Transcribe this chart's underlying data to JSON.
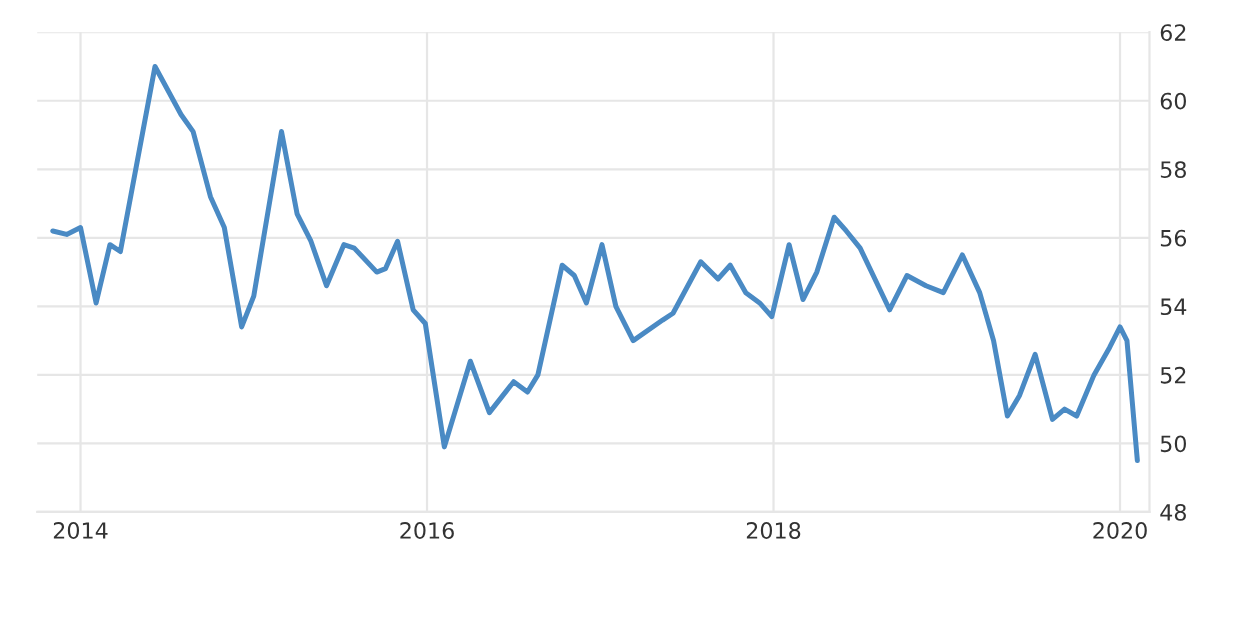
{
  "chart_data": {
    "type": "line",
    "x": [
      2013.84,
      2013.92,
      2014.0,
      2014.09,
      2014.17,
      2014.23,
      2014.43,
      2014.58,
      2014.65,
      2014.75,
      2014.83,
      2014.93,
      2015.0,
      2015.16,
      2015.25,
      2015.33,
      2015.42,
      2015.52,
      2015.58,
      2015.71,
      2015.76,
      2015.83,
      2015.92,
      2015.99,
      2016.1,
      2016.25,
      2016.36,
      2016.5,
      2016.58,
      2016.64,
      2016.78,
      2016.85,
      2016.92,
      2017.01,
      2017.09,
      2017.19,
      2017.36,
      2017.42,
      2017.58,
      2017.68,
      2017.75,
      2017.84,
      2017.92,
      2017.99,
      2018.09,
      2018.17,
      2018.25,
      2018.35,
      2018.42,
      2018.5,
      2018.67,
      2018.77,
      2018.88,
      2018.98,
      2019.09,
      2019.19,
      2019.27,
      2019.35,
      2019.42,
      2019.51,
      2019.61,
      2019.68,
      2019.75,
      2019.85,
      2019.94,
      2020.0,
      2020.04,
      2020.1
    ],
    "series": [
      {
        "color": "#4a8ac4",
        "values": [
          56.2,
          56.1,
          56.3,
          54.1,
          55.8,
          55.6,
          61.0,
          59.6,
          59.1,
          57.2,
          56.3,
          53.4,
          54.3,
          59.1,
          56.7,
          55.9,
          54.6,
          55.8,
          55.7,
          55.0,
          55.1,
          55.9,
          53.9,
          53.5,
          49.9,
          52.4,
          50.9,
          51.8,
          51.5,
          52.0,
          55.2,
          54.9,
          54.1,
          55.8,
          54.0,
          53.0,
          53.6,
          53.8,
          55.3,
          54.8,
          55.2,
          54.4,
          54.1,
          53.7,
          55.8,
          54.2,
          55.0,
          56.6,
          56.2,
          55.7,
          53.9,
          54.9,
          54.6,
          54.4,
          55.5,
          54.4,
          53.0,
          50.8,
          51.4,
          52.6,
          50.7,
          51.0,
          50.8,
          52.0,
          52.8,
          53.4,
          53.0,
          49.5
        ]
      }
    ],
    "xlim": [
      2013.75,
      2020.17
    ],
    "xticks": [
      2014,
      2016,
      2018,
      2020
    ],
    "ylim": [
      48,
      62
    ],
    "yticks": [
      48,
      50,
      52,
      54,
      56,
      58,
      60,
      62
    ],
    "grid": true,
    "marker": "none",
    "line_style": "solid"
  }
}
